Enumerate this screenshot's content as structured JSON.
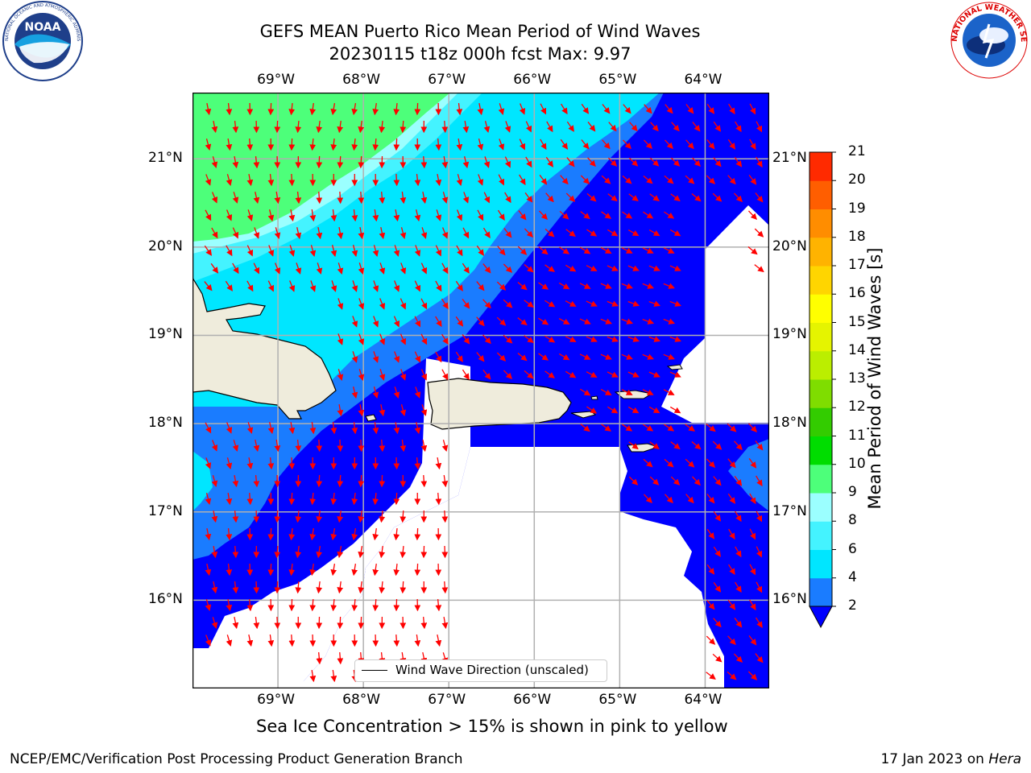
{
  "header": {
    "title_line1": "GEFS MEAN Puerto Rico Mean Period of Wind Waves",
    "title_line2": "20230115 t18z 000h fcst   Max: 9.97"
  },
  "logos": {
    "left": "NOAA",
    "left_ring": "NATIONAL OCEANIC AND ATMOSPHERIC ADMINISTRATION · U.S. DEPARTMENT OF COMMERCE",
    "right_ring": "NATIONAL WEATHER SERVICE"
  },
  "map": {
    "lon_labels": [
      "69°W",
      "68°W",
      "67°W",
      "66°W",
      "65°W",
      "64°W"
    ],
    "lat_labels": [
      "21°N",
      "20°N",
      "19°N",
      "18°N",
      "17°N",
      "16°N"
    ],
    "lon_extent": [
      -70.0,
      -63.25
    ],
    "lat_extent": [
      15.0,
      21.75
    ],
    "colors": {
      "land": "#efecdc",
      "ocean_white": "#ffffff",
      "gridline": "#b0b0b0",
      "arrow": "#ff0000",
      "coast": "#000000"
    },
    "legend_label": "Wind Wave Direction (unscaled)"
  },
  "colorbar": {
    "label": "Mean Period of Wind Waves [s]",
    "ticks": [
      "2",
      "4",
      "6",
      "8",
      "9",
      "10",
      "11",
      "12",
      "13",
      "14",
      "15",
      "16",
      "17",
      "18",
      "19",
      "20",
      "21"
    ],
    "colors": [
      "#1a7cff",
      "#00e6ff",
      "#44f3ff",
      "#9bffff",
      "#4dff7a",
      "#00dd00",
      "#33cc00",
      "#7fdd00",
      "#bbee00",
      "#e5f400",
      "#ffff00",
      "#ffd500",
      "#ffb300",
      "#ff8d00",
      "#ff5e00",
      "#ff2a00",
      "#ff0000"
    ],
    "extend_color": "#0000ff"
  },
  "footer": {
    "note": "Sea Ice Concentration > 15% is shown in pink to yellow",
    "left": "NCEP/EMC/Verification Post Processing Product Generation Branch",
    "right_prefix": "17 Jan 2023 on ",
    "right_host": "Hera"
  },
  "chart_data": {
    "type": "heatmap",
    "title": "GEFS MEAN Puerto Rico Mean Period of Wind Waves",
    "subtitle": "20230115 t18z 000h fcst   Max: 9.97",
    "variable": "Mean Period of Wind Waves [s]",
    "max": 9.97,
    "xlim": [
      -70.0,
      -63.25
    ],
    "ylim": [
      15.0,
      21.75
    ],
    "colorbar_levels": [
      2,
      4,
      6,
      8,
      9,
      10,
      11,
      12,
      13,
      14,
      15,
      16,
      17,
      18,
      19,
      20,
      21
    ],
    "regions": [
      {
        "range_s": "9-10",
        "area": "northwest corner, north of ~20°N west of ~67°W"
      },
      {
        "range_s": "8-9",
        "area": "thin band along SE edge of green area"
      },
      {
        "range_s": "6-8",
        "area": "north-central band from NW toward NE"
      },
      {
        "range_s": "2-4",
        "area": "diagonal band across center and south-west"
      },
      {
        "range_s": "<2",
        "area": "eastern and southern margins"
      }
    ]
  }
}
